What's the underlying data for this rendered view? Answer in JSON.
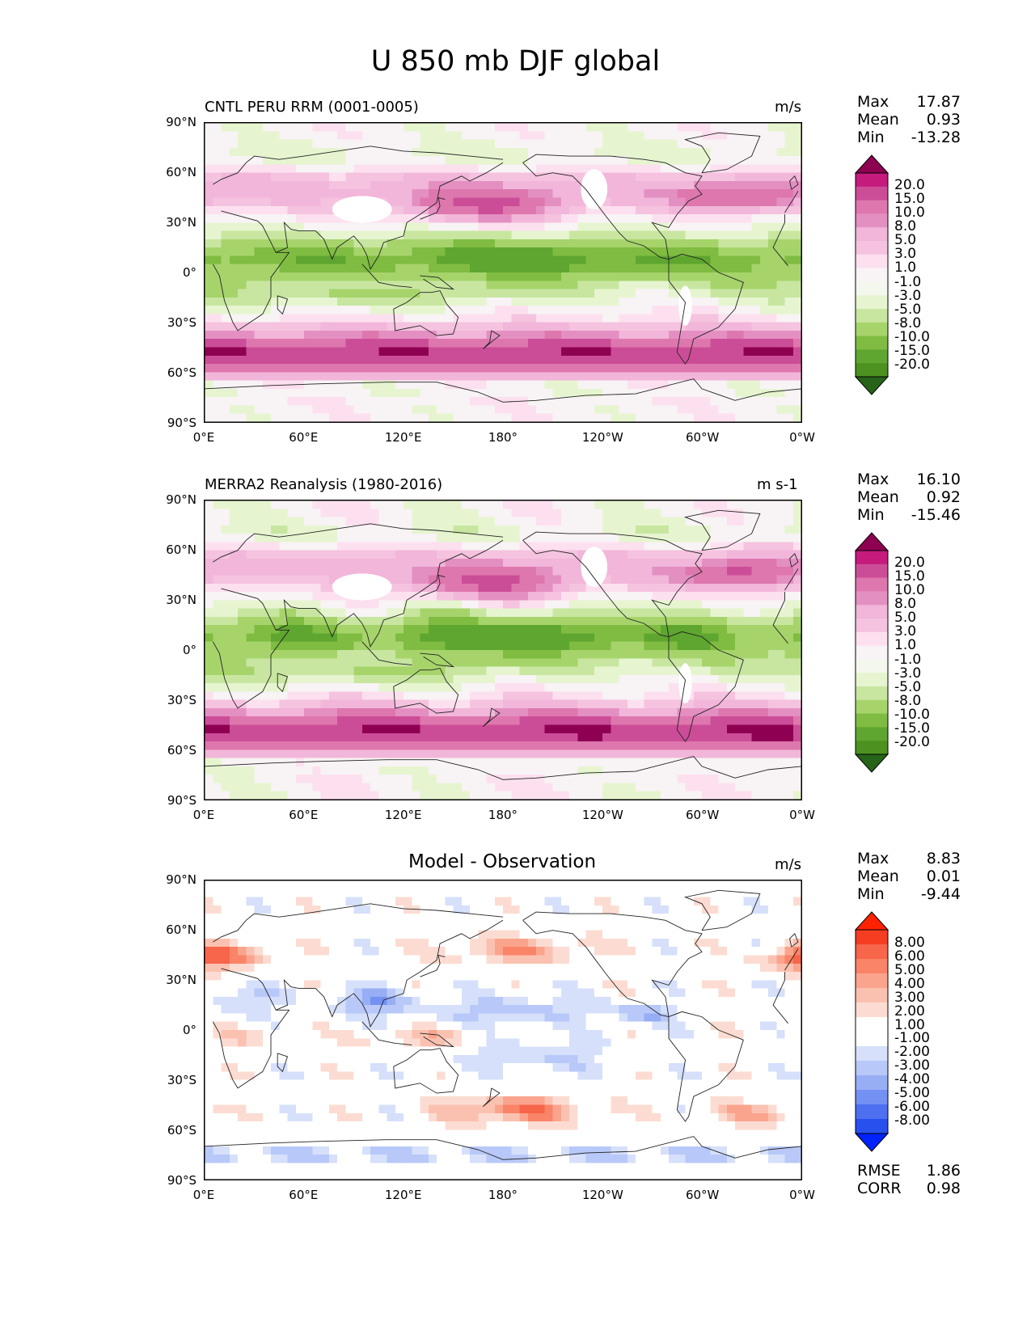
{
  "title": "U 850 mb DJF global",
  "axes": {
    "lat_labels": [
      "90°N",
      "60°N",
      "30°N",
      "0°",
      "30°S",
      "60°S",
      "90°S"
    ],
    "lon_labels": [
      "0°E",
      "60°E",
      "120°E",
      "180°",
      "120°W",
      "60°W",
      "0°W"
    ]
  },
  "colors": {
    "field_scale": [
      "#276419",
      "#4d9221",
      "#5ea62f",
      "#7fbc41",
      "#a6d46b",
      "#c8e6a0",
      "#e6f5d0",
      "#f4f7ee",
      "#f8f3f5",
      "#fde0ef",
      "#f5c3df",
      "#f1b6da",
      "#e48fc2",
      "#de77ae",
      "#cc4d97",
      "#c51b7d",
      "#8e0152"
    ],
    "diff_scale": [
      "#0022ff",
      "#2850ee",
      "#4d6ff0",
      "#7391f3",
      "#97aef5",
      "#b8c8f8",
      "#d6e0fb",
      "#ffffff",
      "#ffffff",
      "#fcdcd2",
      "#fbc1b0",
      "#fba48d",
      "#f98468",
      "#f7654a",
      "#f53d22",
      "#ff2200"
    ],
    "coast": "#222222"
  },
  "panels": [
    {
      "id": "model",
      "title": "CNTL PERU RRM (0001-0005)",
      "units": "m/s",
      "stats": {
        "max_label": "Max",
        "max": "17.87",
        "mean_label": "Mean",
        "mean": "0.93",
        "min_label": "Min",
        "min": "-13.28"
      },
      "colorbar_labels": [
        "20.0",
        "15.0",
        "10.0",
        "8.0",
        "5.0",
        "3.0",
        "1.0",
        "-1.0",
        "-3.0",
        "-5.0",
        "-8.0",
        "-10.0",
        "-15.0",
        "-20.0"
      ]
    },
    {
      "id": "obs",
      "title": "MERRA2 Reanalysis (1980-2016)",
      "units": "m s-1",
      "stats": {
        "max_label": "Max",
        "max": "16.10",
        "mean_label": "Mean",
        "mean": "0.92",
        "min_label": "Min",
        "min": "-15.46"
      },
      "colorbar_labels": [
        "20.0",
        "15.0",
        "10.0",
        "8.0",
        "5.0",
        "3.0",
        "1.0",
        "-1.0",
        "-3.0",
        "-5.0",
        "-8.0",
        "-10.0",
        "-15.0",
        "-20.0"
      ]
    },
    {
      "id": "diff",
      "title": "Model - Observation",
      "units": "m/s",
      "stats": {
        "max_label": "Max",
        "max": "8.83",
        "mean_label": "Mean",
        "mean": "0.01",
        "min_label": "Min",
        "min": "-9.44"
      },
      "colorbar_labels": [
        "8.00",
        "6.00",
        "5.00",
        "4.00",
        "3.00",
        "2.00",
        "1.00",
        "-1.00",
        "-2.00",
        "-3.00",
        "-4.00",
        "-5.00",
        "-6.00",
        "-8.00"
      ],
      "rmse_label": "RMSE",
      "rmse": "1.86",
      "corr_label": "CORR",
      "corr": "0.98"
    }
  ],
  "chart_data": [
    {
      "type": "heatmap",
      "title": "CNTL PERU RRM (0001-0005)",
      "units": "m/s",
      "xrange": [
        0,
        360
      ],
      "yrange": [
        -90,
        90
      ],
      "levels": [
        -20,
        -15,
        -10,
        -8,
        -5,
        -3,
        -1,
        1,
        3,
        5,
        8,
        10,
        15,
        20
      ],
      "stats": {
        "max": 17.87,
        "mean": 0.93,
        "min": -13.28
      }
    },
    {
      "type": "heatmap",
      "title": "MERRA2 Reanalysis (1980-2016)",
      "units": "m s-1",
      "xrange": [
        0,
        360
      ],
      "yrange": [
        -90,
        90
      ],
      "levels": [
        -20,
        -15,
        -10,
        -8,
        -5,
        -3,
        -1,
        1,
        3,
        5,
        8,
        10,
        15,
        20
      ],
      "stats": {
        "max": 16.1,
        "mean": 0.92,
        "min": -15.46
      }
    },
    {
      "type": "heatmap",
      "title": "Model - Observation",
      "units": "m/s",
      "xrange": [
        0,
        360
      ],
      "yrange": [
        -90,
        90
      ],
      "levels": [
        -8,
        -6,
        -5,
        -4,
        -3,
        -2,
        -1,
        1,
        2,
        3,
        4,
        5,
        6,
        8
      ],
      "stats": {
        "max": 8.83,
        "mean": 0.01,
        "min": -9.44,
        "rmse": 1.86,
        "corr": 0.98
      }
    }
  ]
}
